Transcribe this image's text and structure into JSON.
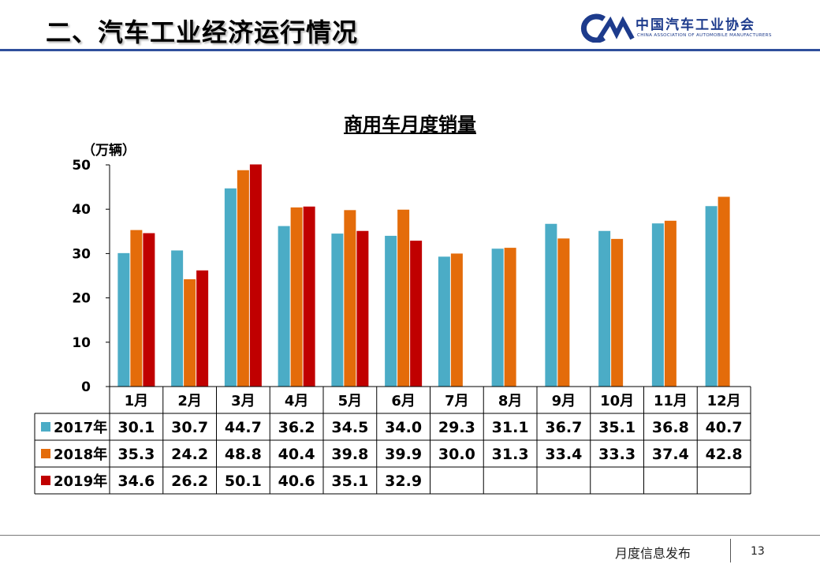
{
  "header": {
    "title": "二、汽车工业经济运行情况",
    "logo_text_cn": "中国汽车工业协会",
    "logo_text_en": "CHINA ASSOCIATION OF AUTOMOBILE MANUFACTURERS"
  },
  "colors": {
    "s2017": "#4BACC6",
    "s2018": "#E46C0A",
    "s2019": "#C00000",
    "header_line": "#2F4F9C"
  },
  "chart_data": {
    "type": "bar",
    "title": "商用车月度销量",
    "ylabel": "（万辆）",
    "xlabel": "",
    "ylim": [
      0,
      50
    ],
    "yticks": [
      "0",
      "10",
      "20",
      "30",
      "40",
      "50"
    ],
    "categories": [
      "1月",
      "2月",
      "3月",
      "4月",
      "5月",
      "6月",
      "7月",
      "8月",
      "9月",
      "10月",
      "11月",
      "12月"
    ],
    "series": [
      {
        "name": "2017年",
        "color": "#4BACC6",
        "values": [
          30.1,
          30.7,
          44.7,
          36.2,
          34.5,
          34.0,
          29.3,
          31.1,
          36.7,
          35.1,
          36.8,
          40.7
        ]
      },
      {
        "name": "2018年",
        "color": "#E46C0A",
        "values": [
          35.3,
          24.2,
          48.8,
          40.4,
          39.8,
          39.9,
          30.0,
          31.3,
          33.4,
          33.3,
          37.4,
          42.8
        ]
      },
      {
        "name": "2019年",
        "color": "#C00000",
        "values": [
          34.6,
          26.2,
          50.1,
          40.6,
          35.1,
          32.9,
          null,
          null,
          null,
          null,
          null,
          null
        ]
      }
    ],
    "table": {
      "rows": [
        [
          "30.1",
          "30.7",
          "44.7",
          "36.2",
          "34.5",
          "34.0",
          "29.3",
          "31.1",
          "36.7",
          "35.1",
          "36.8",
          "40.7"
        ],
        [
          "35.3",
          "24.2",
          "48.8",
          "40.4",
          "39.8",
          "39.9",
          "30.0",
          "31.3",
          "33.4",
          "33.3",
          "37.4",
          "42.8"
        ],
        [
          "34.6",
          "26.2",
          "50.1",
          "40.6",
          "35.1",
          "32.9",
          "",
          "",
          "",
          "",
          "",
          ""
        ]
      ]
    }
  },
  "footer": {
    "text": "月度信息发布",
    "page": "13"
  }
}
